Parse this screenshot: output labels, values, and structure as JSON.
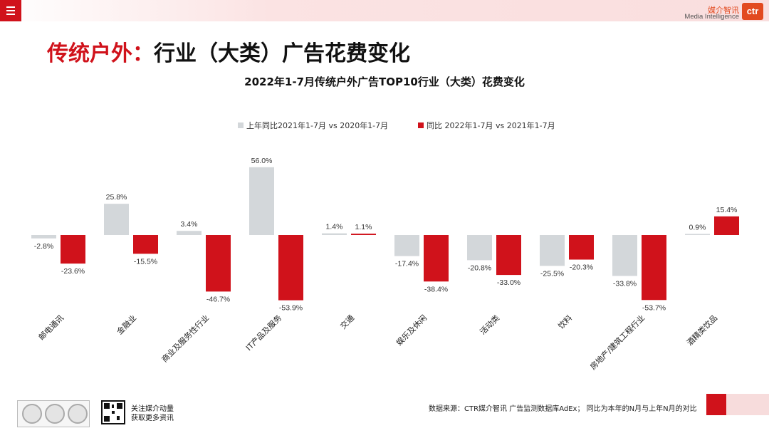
{
  "header": {
    "brand_cn": "媒介智讯",
    "brand_en": "Media Intelligence",
    "logo_text": "ctr"
  },
  "page": {
    "title_red": "传统户外：",
    "title_black": "行业（大类）广告花费变化"
  },
  "footer": {
    "source": "数据来源：CTR媒介智讯 广告监测数据库AdEx；  同比为本年的N月与上年N月的对比",
    "follow_line1": "关注媒介动量",
    "follow_line2": "获取更多资讯"
  },
  "colors": {
    "prev": "#d3d7da",
    "curr": "#d0121b",
    "accent": "#d0121b"
  },
  "chart_data": {
    "type": "bar",
    "title": "2022年1-7月传统户外广告TOP10行业（大类）花费变化",
    "categories": [
      "邮电通讯",
      "金融业",
      "商业及服务性行业",
      "IT产品及服务",
      "交通",
      "娱乐及休闲",
      "活动类",
      "饮料",
      "房地产/建筑工程行业",
      "酒精类饮品"
    ],
    "series": [
      {
        "name": "上年同比2021年1-7月  vs 2020年1-7月",
        "values": [
          -2.8,
          25.8,
          3.4,
          56.0,
          1.4,
          -17.4,
          -20.8,
          -25.5,
          -33.8,
          0.9
        ]
      },
      {
        "name": "同比 2022年1-7月  vs 2021年1-7月",
        "values": [
          -23.6,
          -15.5,
          -46.7,
          -53.9,
          1.1,
          -38.4,
          -33.0,
          -20.3,
          -53.7,
          15.4
        ]
      }
    ],
    "unit": "%",
    "legend_position": "top",
    "grid": false
  }
}
